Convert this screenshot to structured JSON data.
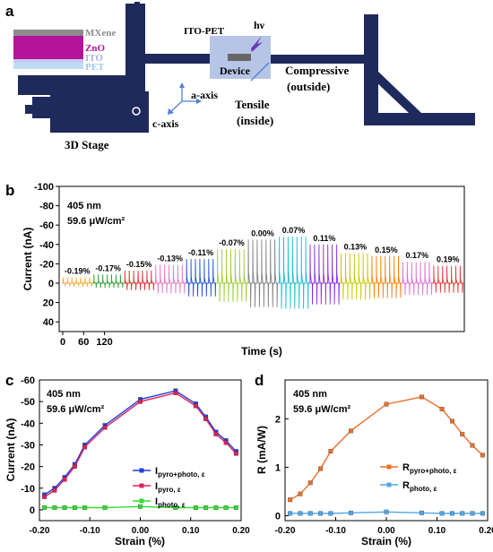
{
  "panel_a": {
    "label": "a",
    "layers": [
      "MXene",
      "ZnO",
      "ITO",
      "PET"
    ],
    "layer_colors": [
      "#8c8c8c",
      "#b5139b",
      "#c8c8f0",
      "#bfdcf5"
    ],
    "stage_label": "3D Stage",
    "ito_label": "ITO-PET",
    "hv_label": "hν",
    "device_label": "Device",
    "compressive": "Compressive",
    "compressive_sub": "(outside)",
    "tensile": "Tensile",
    "tensile_sub": "(inside)",
    "a_axis": "a-axis",
    "c_axis": "c-axis",
    "stage_color": "#1f2a5c"
  },
  "panel_b": {
    "label": "b",
    "wavelength": "405 nm",
    "intensity": "59.6 μW/cm²",
    "ylabel": "Current (nA)",
    "xlabel": "Time (s)",
    "yticks": [
      "-100",
      "-80",
      "-60",
      "-40",
      "-20",
      "0",
      "20",
      "40"
    ],
    "xticks": [
      "0",
      "60",
      "120"
    ],
    "strains": [
      "-0.19%",
      "-0.17%",
      "-0.15%",
      "-0.13%",
      "-0.11%",
      "-0.07%",
      "0.00%",
      "0.07%",
      "0.11%",
      "0.13%",
      "0.15%",
      "0.17%",
      "0.19%"
    ],
    "amplitudes": [
      6,
      9,
      13,
      19,
      25,
      35,
      45,
      48,
      40,
      31,
      28,
      22,
      18
    ],
    "colors": [
      "#f5a623",
      "#2ca02c",
      "#d62728",
      "#e377c2",
      "#1f4fd8",
      "#9acd32",
      "#7f7f7f",
      "#17becf",
      "#8a2be2",
      "#c8c800",
      "#ff7f0e",
      "#da70d6",
      "#e3342f"
    ]
  },
  "panel_c": {
    "label": "c",
    "wavelength": "405 nm",
    "intensity": "59.6 μW/cm²",
    "ylabel": "Current (nA)",
    "xlabel": "Strain (%)",
    "yticks": [
      "-60",
      "-50",
      "-40",
      "-30",
      "-20",
      "-10",
      "0"
    ],
    "xticks": [
      "-0.20",
      "-0.10",
      "0.00",
      "0.10",
      "0.20"
    ],
    "legend": [
      {
        "main": "I",
        "sub": "pyro+photo, ε",
        "color": "#1f3fe0"
      },
      {
        "main": "I",
        "sub": "pyro, ε",
        "color": "#e0205a"
      },
      {
        "main": "I",
        "sub": "photo, ε",
        "color": "#33dd33"
      }
    ]
  },
  "panel_d": {
    "label": "d",
    "wavelength": "405 nm",
    "intensity": "59.6 μW/cm²",
    "ylabel": "R (mA/W)",
    "xlabel": "Strain (%)",
    "yticks": [
      "0",
      "1",
      "2"
    ],
    "xticks": [
      "-0.20",
      "-0.10",
      "0.00",
      "0.10",
      "0.20"
    ],
    "legend": [
      {
        "main": "R",
        "sub": "pyro+photo, ε",
        "color": "#e8702a"
      },
      {
        "main": "R",
        "sub": "photo, ε",
        "color": "#4fa6e8"
      }
    ]
  },
  "chart_data": [
    {
      "type": "line",
      "title": "",
      "xlabel": "Strain (%)",
      "ylabel": "Current (nA)",
      "xlim": [
        -0.2,
        0.2
      ],
      "ylim": [
        -60,
        5
      ],
      "x": [
        -0.19,
        -0.17,
        -0.15,
        -0.13,
        -0.11,
        -0.07,
        0.0,
        0.07,
        0.11,
        0.13,
        0.15,
        0.17,
        0.19
      ],
      "series": [
        {
          "name": "I pyro+photo, ε",
          "values": [
            -7,
            -10,
            -15,
            -21,
            -30,
            -39,
            -51,
            -55,
            -49,
            -43,
            -36,
            -32,
            -27
          ],
          "color": "#1f3fe0"
        },
        {
          "name": "I pyro, ε",
          "values": [
            -6,
            -9,
            -14,
            -20,
            -29,
            -38,
            -50,
            -54,
            -48,
            -42,
            -35,
            -31,
            -26
          ],
          "color": "#e0205a"
        },
        {
          "name": "I photo, ε",
          "values": [
            -1,
            -1,
            -1,
            -1,
            -1,
            -1,
            -1.5,
            -1,
            -1,
            -1,
            -1,
            -1,
            -1
          ],
          "color": "#33dd33"
        }
      ]
    },
    {
      "type": "line",
      "title": "",
      "xlabel": "Strain (%)",
      "ylabel": "R (mA/W)",
      "xlim": [
        -0.2,
        0.2
      ],
      "ylim": [
        -0.1,
        2.8
      ],
      "x": [
        -0.19,
        -0.17,
        -0.15,
        -0.13,
        -0.11,
        -0.07,
        0.0,
        0.07,
        0.11,
        0.13,
        0.15,
        0.17,
        0.19
      ],
      "series": [
        {
          "name": "R pyro+photo, ε",
          "values": [
            0.33,
            0.45,
            0.68,
            0.97,
            1.33,
            1.75,
            2.3,
            2.45,
            2.2,
            1.95,
            1.68,
            1.45,
            1.25
          ],
          "color": "#e8702a"
        },
        {
          "name": "R photo, ε",
          "values": [
            0.05,
            0.05,
            0.05,
            0.05,
            0.05,
            0.06,
            0.08,
            0.06,
            0.05,
            0.05,
            0.05,
            0.05,
            0.05
          ],
          "color": "#4fa6e8"
        }
      ]
    }
  ]
}
